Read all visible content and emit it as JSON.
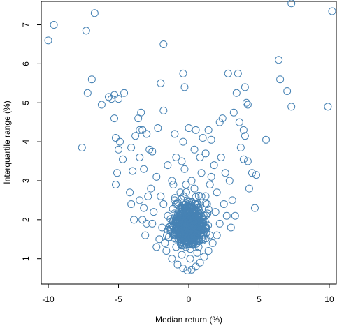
{
  "chart_data": {
    "type": "scatter",
    "title": "",
    "xlabel": "Median return (%)",
    "ylabel": "Interquartile range (%)",
    "xlim": [
      -10.5,
      10.5
    ],
    "ylim": [
      0.35,
      7.6
    ],
    "xticks": [
      -10,
      -5,
      0,
      5,
      10
    ],
    "yticks": [
      1,
      2,
      3,
      4,
      5,
      6,
      7
    ],
    "grid": false,
    "legend": "none",
    "marker": "open-circle",
    "point_color": "#4682b4",
    "series": [
      {
        "points": [
          [
            -10.0,
            6.6
          ],
          [
            -9.6,
            7.0
          ],
          [
            -7.3,
            6.85
          ],
          [
            -6.7,
            7.3
          ],
          [
            -7.6,
            3.85
          ],
          [
            -7.2,
            5.25
          ],
          [
            -6.9,
            5.6
          ],
          [
            -6.2,
            4.95
          ],
          [
            -5.7,
            5.15
          ],
          [
            -5.5,
            5.1
          ],
          [
            -5.3,
            5.2
          ],
          [
            -5.0,
            5.1
          ],
          [
            -4.6,
            5.25
          ],
          [
            -5.3,
            4.6
          ],
          [
            -5.2,
            4.1
          ],
          [
            -4.9,
            4.0
          ],
          [
            -5.0,
            3.8
          ],
          [
            -4.7,
            3.55
          ],
          [
            -5.1,
            3.2
          ],
          [
            -5.2,
            2.9
          ],
          [
            -4.1,
            3.85
          ],
          [
            -3.8,
            4.15
          ],
          [
            -3.5,
            4.3
          ],
          [
            -3.3,
            4.3
          ],
          [
            -3.6,
            4.6
          ],
          [
            -3.4,
            4.75
          ],
          [
            -3.0,
            4.2
          ],
          [
            -3.5,
            3.6
          ],
          [
            -3.2,
            3.3
          ],
          [
            -4.0,
            3.25
          ],
          [
            -4.2,
            2.7
          ],
          [
            -4.1,
            2.4
          ],
          [
            -3.9,
            2.0
          ],
          [
            -3.5,
            2.5
          ],
          [
            -3.2,
            2.3
          ],
          [
            -2.8,
            3.8
          ],
          [
            -2.6,
            3.75
          ],
          [
            -2.2,
            4.35
          ],
          [
            -1.8,
            4.8
          ],
          [
            -2.0,
            5.5
          ],
          [
            -1.8,
            6.5
          ],
          [
            -0.4,
            5.75
          ],
          [
            -0.3,
            5.4
          ],
          [
            -1.0,
            4.2
          ],
          [
            -0.4,
            4.0
          ],
          [
            0.0,
            4.35
          ],
          [
            0.5,
            4.3
          ],
          [
            1.0,
            4.1
          ],
          [
            1.4,
            4.3
          ],
          [
            1.6,
            4.05
          ],
          [
            2.2,
            4.5
          ],
          [
            2.4,
            4.6
          ],
          [
            2.8,
            5.75
          ],
          [
            3.5,
            5.75
          ],
          [
            3.4,
            5.25
          ],
          [
            3.2,
            4.75
          ],
          [
            3.6,
            4.5
          ],
          [
            3.9,
            4.3
          ],
          [
            4.0,
            4.15
          ],
          [
            4.2,
            4.95
          ],
          [
            4.0,
            5.4
          ],
          [
            4.1,
            5.0
          ],
          [
            3.7,
            3.85
          ],
          [
            3.9,
            3.55
          ],
          [
            4.2,
            3.5
          ],
          [
            4.5,
            3.2
          ],
          [
            4.3,
            2.8
          ],
          [
            4.7,
            2.3
          ],
          [
            4.8,
            3.15
          ],
          [
            5.5,
            4.05
          ],
          [
            6.4,
            6.1
          ],
          [
            6.5,
            5.6
          ],
          [
            7.0,
            5.3
          ],
          [
            7.3,
            4.9
          ],
          [
            7.3,
            7.55
          ],
          [
            9.9,
            4.9
          ],
          [
            10.2,
            7.35
          ],
          [
            -2.3,
            3.1
          ],
          [
            -2.0,
            2.6
          ],
          [
            -1.5,
            3.4
          ],
          [
            -1.2,
            3.0
          ],
          [
            -0.9,
            3.6
          ],
          [
            -0.5,
            3.5
          ],
          [
            0.4,
            3.8
          ],
          [
            0.8,
            3.6
          ],
          [
            1.2,
            3.7
          ],
          [
            1.8,
            3.4
          ],
          [
            2.3,
            3.6
          ],
          [
            2.6,
            3.2
          ],
          [
            2.9,
            3.0
          ],
          [
            3.1,
            2.5
          ],
          [
            3.3,
            2.1
          ],
          [
            -2.5,
            2.2
          ],
          [
            -2.7,
            2.8
          ],
          [
            -3.0,
            1.9
          ],
          [
            -3.1,
            1.6
          ],
          [
            2.5,
            2.4
          ],
          [
            2.0,
            2.7
          ],
          [
            1.5,
            2.9
          ],
          [
            -1.0,
            2.5
          ],
          [
            -1.5,
            2.1
          ],
          [
            -1.9,
            1.8
          ],
          [
            -2.1,
            1.5
          ],
          [
            -2.3,
            1.3
          ],
          [
            -1.6,
            1.2
          ],
          [
            -1.2,
            1.0
          ],
          [
            -0.8,
            0.85
          ],
          [
            -0.4,
            0.75
          ],
          [
            -0.1,
            0.7
          ],
          [
            0.2,
            0.72
          ],
          [
            0.5,
            0.8
          ],
          [
            0.8,
            0.9
          ],
          [
            1.1,
            1.05
          ],
          [
            1.4,
            1.2
          ],
          [
            1.7,
            1.4
          ],
          [
            2.0,
            1.6
          ],
          [
            2.2,
            1.9
          ],
          [
            1.9,
            2.2
          ],
          [
            1.3,
            2.4
          ],
          [
            0.9,
            2.6
          ],
          [
            0.4,
            2.8
          ],
          [
            -0.2,
            2.9
          ],
          [
            -0.6,
            2.7
          ],
          [
            -1.3,
            1.7
          ],
          [
            -0.9,
            1.3
          ],
          [
            -0.5,
            1.1
          ],
          [
            0.1,
            1.0
          ],
          [
            0.6,
            1.15
          ],
          [
            1.0,
            1.5
          ],
          [
            1.2,
            1.8
          ],
          [
            0.8,
            2.0
          ],
          [
            0.3,
            2.2
          ],
          [
            -0.3,
            2.3
          ],
          [
            -0.7,
            2.0
          ],
          [
            -1.0,
            1.6
          ],
          [
            -0.6,
            1.5
          ],
          [
            -0.2,
            1.3
          ],
          [
            0.3,
            1.35
          ],
          [
            0.6,
            1.6
          ],
          [
            0.4,
            1.85
          ],
          [
            -0.1,
            1.9
          ],
          [
            -0.4,
            1.7
          ],
          [
            0.0,
            1.55
          ],
          [
            0.2,
            1.6
          ],
          [
            -0.2,
            1.45
          ],
          [
            0.1,
            1.25
          ],
          [
            0.5,
            1.45
          ],
          [
            -0.5,
            1.35
          ],
          [
            0.7,
            1.3
          ],
          [
            -0.8,
            1.9
          ],
          [
            1.5,
            1.6
          ],
          [
            -1.7,
            1.4
          ],
          [
            -2.6,
            1.9
          ],
          [
            2.7,
            2.1
          ],
          [
            3.0,
            1.8
          ],
          [
            -3.3,
            2.0
          ],
          [
            -2.9,
            2.6
          ],
          [
            0.9,
            3.2
          ],
          [
            -0.3,
            3.3
          ],
          [
            0.2,
            3.0
          ],
          [
            -0.1,
            2.5
          ],
          [
            0.6,
            2.4
          ],
          [
            -1.1,
            2.9
          ],
          [
            1.6,
            3.1
          ],
          [
            -1.8,
            2.4
          ]
        ]
      }
    ]
  }
}
